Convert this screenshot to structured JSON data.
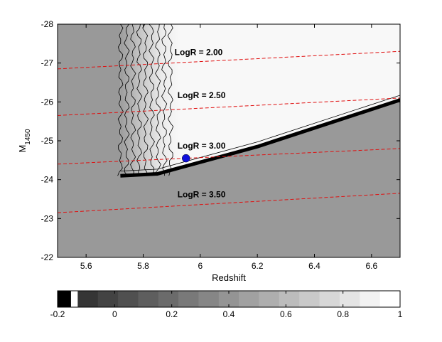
{
  "chart_data": {
    "type": "heatmap",
    "title": "",
    "xlabel": "Redshift",
    "ylabel": "M",
    "ylabel_subscript": "1450",
    "xlim": [
      5.5,
      6.7
    ],
    "ylim": [
      -22,
      -28
    ],
    "y_axis_reversed": true,
    "x_ticks": [
      "5.6",
      "5.8",
      "6",
      "6.2",
      "6.4",
      "6.6"
    ],
    "y_ticks": [
      "-28",
      "-27",
      "-26",
      "-25",
      "-24",
      "-23",
      "-22"
    ],
    "colormap": "gray",
    "colors": {
      "background_field": "#999999",
      "completeness_max": "#ffffff",
      "contour": "#000000",
      "logr_line": "#e01010",
      "point": "#1010dd"
    },
    "colorbar": {
      "range": [
        -0.2,
        1
      ],
      "ticks": [
        "-0.2",
        "0",
        "0.2",
        "0.4",
        "0.6",
        "0.8",
        "1"
      ],
      "levels": 17
    },
    "boundary": {
      "left_edge_redshift": 5.72,
      "top_magnitude": -28,
      "bottom_edge": [
        [
          5.72,
          -24.1
        ],
        [
          5.85,
          -24.15
        ],
        [
          6.2,
          -24.85
        ],
        [
          6.7,
          -26.05
        ]
      ]
    },
    "logr_lines": [
      {
        "label": "LogR = 2.00",
        "start": [
          5.5,
          -26.85
        ],
        "end": [
          6.7,
          -27.3
        ],
        "label_pos": [
          5.91,
          -27.2
        ]
      },
      {
        "label": "LogR = 2.50",
        "start": [
          5.5,
          -25.65
        ],
        "end": [
          6.7,
          -26.1
        ],
        "label_pos": [
          5.92,
          -26.1
        ]
      },
      {
        "label": "LogR = 3.00",
        "start": [
          5.5,
          -24.4
        ],
        "end": [
          6.7,
          -24.8
        ],
        "label_pos": [
          5.92,
          -24.8
        ]
      },
      {
        "label": "LogR = 3.50",
        "start": [
          5.5,
          -23.15
        ],
        "end": [
          6.7,
          -23.65
        ],
        "label_pos": [
          5.92,
          -23.55
        ]
      }
    ],
    "points": [
      {
        "x": 5.95,
        "y": -24.55
      }
    ]
  }
}
